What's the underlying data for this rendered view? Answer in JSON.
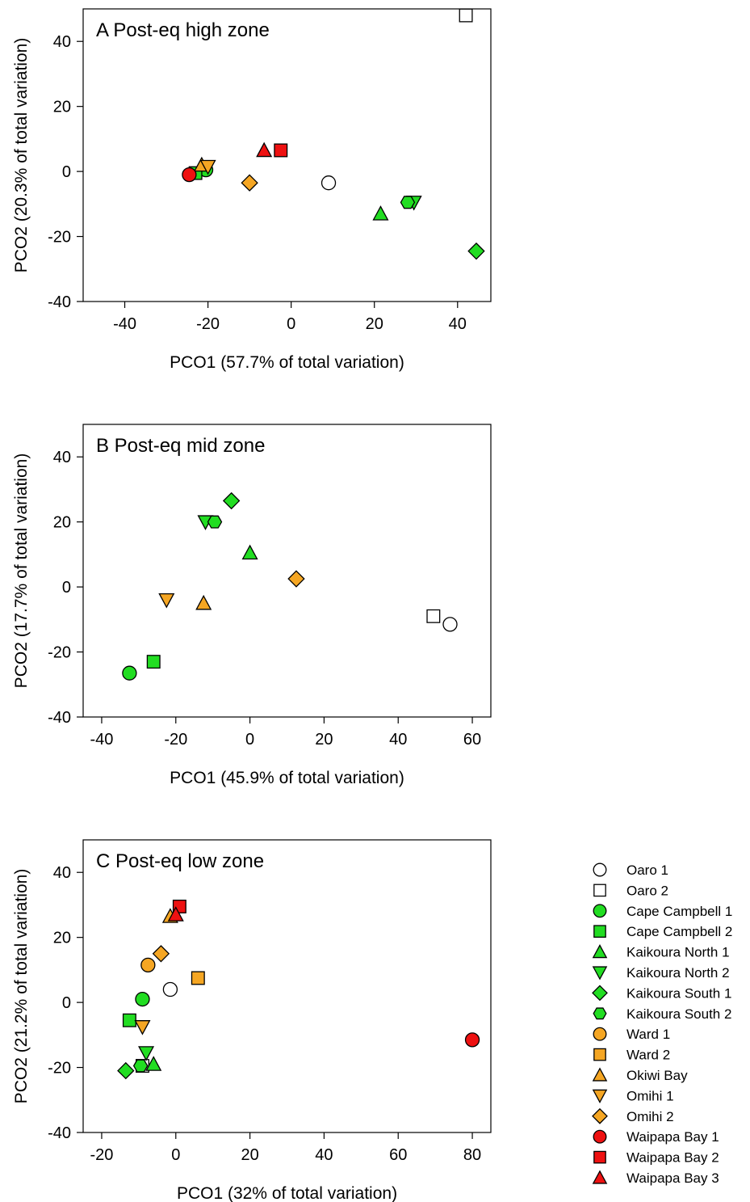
{
  "legend": [
    {
      "key": "oaro1",
      "label": "Oaro 1",
      "shape": "circle",
      "color": "#ffffff"
    },
    {
      "key": "oaro2",
      "label": "Oaro 2",
      "shape": "square",
      "color": "#ffffff"
    },
    {
      "key": "cc1",
      "label": "Cape Campbell 1",
      "shape": "circle",
      "color": "#22dd22"
    },
    {
      "key": "cc2",
      "label": "Cape Campbell 2",
      "shape": "square",
      "color": "#22dd22"
    },
    {
      "key": "kn1",
      "label": "Kaikoura North 1",
      "shape": "triangle-up",
      "color": "#22dd22"
    },
    {
      "key": "kn2",
      "label": "Kaikoura North 2",
      "shape": "triangle-down",
      "color": "#22dd22"
    },
    {
      "key": "ks1",
      "label": "Kaikoura South 1",
      "shape": "diamond",
      "color": "#22dd22"
    },
    {
      "key": "ks2",
      "label": "Kaikoura South 2",
      "shape": "hexagon",
      "color": "#22dd22"
    },
    {
      "key": "ward1",
      "label": "Ward 1",
      "shape": "circle",
      "color": "#f5a623"
    },
    {
      "key": "ward2",
      "label": "Ward 2",
      "shape": "square",
      "color": "#f5a623"
    },
    {
      "key": "okiwi",
      "label": "Okiwi Bay",
      "shape": "triangle-up",
      "color": "#f5a623"
    },
    {
      "key": "omihi1",
      "label": "Omihi 1",
      "shape": "triangle-down",
      "color": "#f5a623"
    },
    {
      "key": "omihi2",
      "label": "Omihi 2",
      "shape": "diamond",
      "color": "#f5a623"
    },
    {
      "key": "wb1",
      "label": "Waipapa Bay 1",
      "shape": "circle",
      "color": "#ee1111"
    },
    {
      "key": "wb2",
      "label": "Waipapa Bay 2",
      "shape": "square",
      "color": "#ee1111"
    },
    {
      "key": "wb3",
      "label": "Waipapa Bay 3",
      "shape": "triangle-up",
      "color": "#ee1111"
    }
  ],
  "chart_data": [
    {
      "type": "scatter",
      "title": "A Post-eq high zone",
      "xlabel": "PCO1 (57.7% of total variation)",
      "ylabel": "PCO2 (20.3% of total variation)",
      "xlim": [
        -50,
        48
      ],
      "ylim": [
        -40,
        50
      ],
      "xticks": [
        -40,
        -20,
        0,
        20,
        40
      ],
      "yticks": [
        -40,
        -20,
        0,
        20,
        40
      ],
      "points": [
        {
          "site": "oaro1",
          "x": 9,
          "y": -3.5
        },
        {
          "site": "oaro2",
          "x": 42,
          "y": 48
        },
        {
          "site": "cc1",
          "x": -20.5,
          "y": 0.5
        },
        {
          "site": "cc2",
          "x": -23,
          "y": -0.5
        },
        {
          "site": "kn1",
          "x": 21.5,
          "y": -13
        },
        {
          "site": "kn2",
          "x": 29.5,
          "y": -9.5
        },
        {
          "site": "ks1",
          "x": 44.5,
          "y": -24.5
        },
        {
          "site": "ks2",
          "x": 28,
          "y": -9.5
        },
        {
          "site": "okiwi",
          "x": -21.5,
          "y": 2
        },
        {
          "site": "omihi1",
          "x": -20,
          "y": 1.5
        },
        {
          "site": "omihi2",
          "x": -10,
          "y": -3.5
        },
        {
          "site": "wb1",
          "x": -24.5,
          "y": -1
        },
        {
          "site": "wb2",
          "x": -2.5,
          "y": 6.5
        },
        {
          "site": "wb3",
          "x": -6.5,
          "y": 6.5
        }
      ]
    },
    {
      "type": "scatter",
      "title": "B Post-eq mid zone",
      "xlabel": "PCO1 (45.9% of total variation)",
      "ylabel": "PCO2 (17.7% of total variation)",
      "xlim": [
        -45,
        65
      ],
      "ylim": [
        -40,
        50
      ],
      "xticks": [
        -40,
        -20,
        0,
        20,
        40,
        60
      ],
      "yticks": [
        -40,
        -20,
        0,
        20,
        40
      ],
      "points": [
        {
          "site": "oaro1",
          "x": 54,
          "y": -11.5
        },
        {
          "site": "oaro2",
          "x": 49.5,
          "y": -9
        },
        {
          "site": "cc1",
          "x": -32.5,
          "y": -26.5
        },
        {
          "site": "cc2",
          "x": -26,
          "y": -23
        },
        {
          "site": "kn1",
          "x": 0,
          "y": 10.5
        },
        {
          "site": "kn2",
          "x": -12,
          "y": 20
        },
        {
          "site": "ks1",
          "x": -5,
          "y": 26.5
        },
        {
          "site": "ks2",
          "x": -9.5,
          "y": 20
        },
        {
          "site": "okiwi",
          "x": -12.5,
          "y": -5
        },
        {
          "site": "omihi1",
          "x": -22.5,
          "y": -4
        },
        {
          "site": "omihi2",
          "x": 12.5,
          "y": 2.5
        }
      ]
    },
    {
      "type": "scatter",
      "title": "C Post-eq low zone",
      "xlabel": "PCO1 (32% of total variation)",
      "ylabel": "PCO2 (21.2% of total variation)",
      "xlim": [
        -25,
        85
      ],
      "ylim": [
        -40,
        50
      ],
      "xticks": [
        -20,
        0,
        20,
        40,
        60,
        80
      ],
      "yticks": [
        -40,
        -20,
        0,
        20,
        40
      ],
      "points": [
        {
          "site": "oaro1",
          "x": -1.5,
          "y": 4
        },
        {
          "site": "oaro2",
          "x": -9,
          "y": -19.5
        },
        {
          "site": "cc1",
          "x": -9,
          "y": 1
        },
        {
          "site": "cc2",
          "x": -12.5,
          "y": -5.5
        },
        {
          "site": "kn1",
          "x": -6,
          "y": -19
        },
        {
          "site": "kn2",
          "x": -8,
          "y": -15.5
        },
        {
          "site": "ks1",
          "x": -13.5,
          "y": -21
        },
        {
          "site": "ks2",
          "x": -9.5,
          "y": -19.5
        },
        {
          "site": "ward1",
          "x": -7.5,
          "y": 11.5
        },
        {
          "site": "ward2",
          "x": 6,
          "y": 7.5
        },
        {
          "site": "okiwi",
          "x": -1.5,
          "y": 26.5
        },
        {
          "site": "omihi1",
          "x": -9,
          "y": -7.5
        },
        {
          "site": "omihi2",
          "x": -4,
          "y": 15
        },
        {
          "site": "wb1",
          "x": 80,
          "y": -11.5
        },
        {
          "site": "wb2",
          "x": 1,
          "y": 29.5
        },
        {
          "site": "wb3",
          "x": 0,
          "y": 27
        }
      ]
    }
  ]
}
